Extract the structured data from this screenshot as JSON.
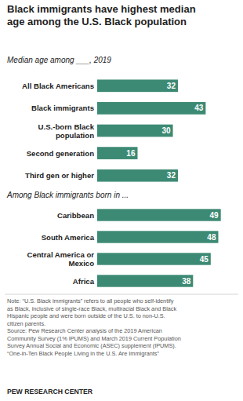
{
  "chart_data": [
    {
      "type": "bar",
      "title": "Black immigrants have highest median\nage among the U.S. Black population",
      "subtitle": "Median age among ___, 2019",
      "orientation": "horizontal",
      "categories": [
        "All Black Americans",
        "Black immigrants",
        "U.S.-born Black\npopulation",
        "Second generation",
        "Third gen or higher"
      ],
      "values": [
        32,
        43,
        30,
        16,
        32
      ],
      "color": "#3d8a74",
      "xlim": [
        0,
        55
      ],
      "data_labels": true,
      "tick_labels": "y",
      "grid": false
    },
    {
      "type": "bar",
      "title": "Among Black immigrants born in ...",
      "orientation": "horizontal",
      "categories": [
        "Caribbean",
        "South America",
        "Central America or\nMexico",
        "Africa"
      ],
      "values": [
        49,
        48,
        45,
        38
      ],
      "color": "#3d8a74",
      "xlim": [
        0,
        55
      ],
      "data_labels": true,
      "tick_labels": "y",
      "grid": false,
      "annotations": [
        "Note:  “U.S. Black immigrants” refers to all people who self-identify\nas Black, inclusive of single-race Black, multiracial Black and Black\nHispanic people and were born outside of the U.S. to non-U.S.\ncitizen parents.\nSource: Pew Research Center analysis of the 2019 American\nCommunity Survey (1% IPUMS) and March 2019 Current Population\nSurvey Annual Social and Economic (ASEC) supplement (IPUMS).\n“One-in-Ten Black People Living in the U.S. Are Immigrants”",
        "PEW RESEARCH CENTER"
      ]
    }
  ]
}
